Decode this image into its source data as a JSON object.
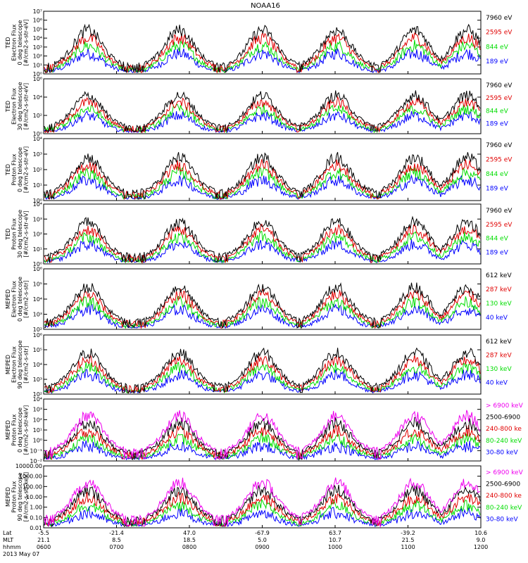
{
  "title": "NOAA16",
  "colors": {
    "blue": "#0000ff",
    "red": "#e00000",
    "green": "#00dd00",
    "black": "#000000",
    "magenta": "#ee00ee"
  },
  "chart_data": {
    "type": "line",
    "title": "NOAA16",
    "x_axis": {
      "rows": [
        {
          "label": "Lat",
          "values": [
            "-5.5",
            "-21.4",
            "47.0",
            "-67.9",
            "63.7",
            "-39.2",
            "10.6"
          ]
        },
        {
          "label": "MLT",
          "values": [
            "21.1",
            "8.5",
            "18.5",
            "5.0",
            "10.7",
            "21.5",
            "9.0"
          ]
        },
        {
          "label": "hhmm",
          "values": [
            "0600",
            "0700",
            "0800",
            "0900",
            "1000",
            "1100",
            "1200"
          ]
        }
      ],
      "date": "2013 May 07",
      "time_range": [
        "0600",
        "1200"
      ]
    },
    "panels": [
      {
        "ylabel": [
          "TED",
          "Electron Flux",
          "0 deg telescope",
          "[#/cm2-s-str-eV]"
        ],
        "yscale": "log",
        "yticks": [
          "10⁰",
          "10¹",
          "10²",
          "10³",
          "10⁴",
          "10⁵",
          "10⁶",
          "10⁷"
        ],
        "ylim": [
          1,
          10000000
        ],
        "channels": [
          {
            "label": "7960 eV",
            "color": "black"
          },
          {
            "label": "2595 eV",
            "color": "red"
          },
          {
            "label": "844 eV",
            "color": "green"
          },
          {
            "label": "189 eV",
            "color": "blue"
          }
        ]
      },
      {
        "ylabel": [
          "TED",
          "Electron Flux",
          "30 deg telescope",
          "[#/cm2-s-str-eV]"
        ],
        "yscale": "log",
        "yticks": [
          "10⁰",
          "10²",
          "10⁴",
          "10⁶"
        ],
        "ylim": [
          1,
          1000000
        ],
        "channels": [
          {
            "label": "7960 eV",
            "color": "black"
          },
          {
            "label": "2595 eV",
            "color": "red"
          },
          {
            "label": "844 eV",
            "color": "green"
          },
          {
            "label": "189 eV",
            "color": "blue"
          }
        ]
      },
      {
        "ylabel": [
          "TED",
          "Proton Flux",
          "0 deg telescope",
          "[#/cm2-s-str-eV]"
        ],
        "yscale": "log",
        "yticks": [
          "10⁰",
          "10¹",
          "10²",
          "10³",
          "10⁴"
        ],
        "ylim": [
          1,
          10000
        ],
        "channels": [
          {
            "label": "7960 eV",
            "color": "black"
          },
          {
            "label": "2595 eV",
            "color": "red"
          },
          {
            "label": "844 eV",
            "color": "green"
          },
          {
            "label": "189 eV",
            "color": "blue"
          }
        ]
      },
      {
        "ylabel": [
          "TED",
          "Proton Flux",
          "30 deg telescope",
          "[#/cm2-s-str-eV]"
        ],
        "yscale": "log",
        "yticks": [
          "10⁰",
          "10¹",
          "10²",
          "10³",
          "10⁴"
        ],
        "ylim": [
          1,
          10000
        ],
        "channels": [
          {
            "label": "7960 eV",
            "color": "black"
          },
          {
            "label": "2595 eV",
            "color": "red"
          },
          {
            "label": "844 eV",
            "color": "green"
          },
          {
            "label": "189 eV",
            "color": "blue"
          }
        ]
      },
      {
        "ylabel": [
          "MEPED",
          "Electron Flux",
          "0 deg telescope",
          "[#/cm2-s-str]"
        ],
        "yscale": "log",
        "yticks": [
          "10²",
          "10³",
          "10⁴",
          "10⁵",
          "10⁶"
        ],
        "ylim": [
          100,
          1000000
        ],
        "channels": [
          {
            "label": "612 keV",
            "color": "black"
          },
          {
            "label": "287 keV",
            "color": "red"
          },
          {
            "label": "130 keV",
            "color": "green"
          },
          {
            "label": "40 keV",
            "color": "blue"
          }
        ]
      },
      {
        "ylabel": [
          "MEPED",
          "Electron Flux",
          "90 deg telescope",
          "[#/cm2-s-str]"
        ],
        "yscale": "log",
        "yticks": [
          "10²",
          "10³",
          "10⁴",
          "10⁵",
          "10⁶"
        ],
        "ylim": [
          100,
          1000000
        ],
        "channels": [
          {
            "label": "612 keV",
            "color": "black"
          },
          {
            "label": "287 keV",
            "color": "red"
          },
          {
            "label": "130 keV",
            "color": "green"
          },
          {
            "label": "40 keV",
            "color": "blue"
          }
        ]
      },
      {
        "ylabel": [
          "MEPED",
          "Proton Flux",
          "0 deg telescope",
          "[#/cm2-s-str-keV]"
        ],
        "yscale": "log",
        "yticks": [
          "10⁻²",
          "10⁻¹",
          "10⁰",
          "10¹",
          "10²",
          "10³",
          "10⁴"
        ],
        "ylim": [
          0.01,
          10000
        ],
        "channels": [
          {
            "label": "> 6900 keV",
            "color": "magenta"
          },
          {
            "label": "2500-6900",
            "color": "black"
          },
          {
            "label": "240-800 ke",
            "color": "red"
          },
          {
            "label": "80-240 keV",
            "color": "green"
          },
          {
            "label": "30-80 keV",
            "color": "blue"
          }
        ]
      },
      {
        "ylabel": [
          "MEPED",
          "Proton Flux",
          "90 deg telescope",
          "[#/cm2-s-str-keV]"
        ],
        "yscale": "log",
        "yticks": [
          "0.01",
          "0.10",
          "1.00",
          "10.00",
          "100.00",
          "1000.00",
          "10000.00"
        ],
        "ylim": [
          0.01,
          10000
        ],
        "channels": [
          {
            "label": "> 6900 keV",
            "color": "magenta"
          },
          {
            "label": "2500-6900",
            "color": "black"
          },
          {
            "label": "240-800 ke",
            "color": "red"
          },
          {
            "label": "80-240 keV",
            "color": "green"
          },
          {
            "label": "30-80 keV",
            "color": "blue"
          }
        ]
      }
    ]
  }
}
